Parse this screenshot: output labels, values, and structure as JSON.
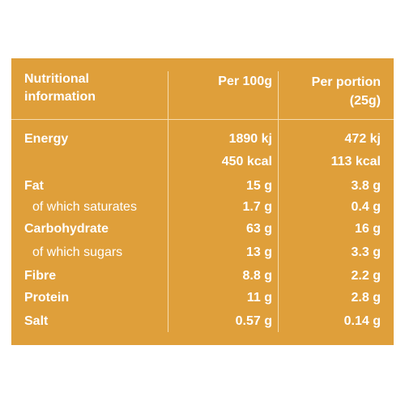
{
  "table": {
    "header": [
      "Nutritional information",
      "Per 100g",
      "Per portion (25g)"
    ],
    "rows": [
      [
        "Energy",
        "1890 kj",
        "472 kj"
      ],
      [
        null,
        "450 kcal",
        "113 kcal"
      ],
      [
        "Fat",
        "15 g",
        "3.8 g"
      ],
      [
        "of which saturates",
        "1.7 g",
        "0.4 g"
      ],
      [
        "Carbohydrate",
        "63 g",
        "16 g"
      ],
      [
        "of which sugars",
        "13 g",
        "3.3 g"
      ],
      [
        "Fibre",
        "8.8 g",
        "2.2 g"
      ],
      [
        "Protein",
        "11 g",
        "2.8 g"
      ],
      [
        "Salt",
        "0.57 g",
        "0.14 g"
      ]
    ]
  }
}
